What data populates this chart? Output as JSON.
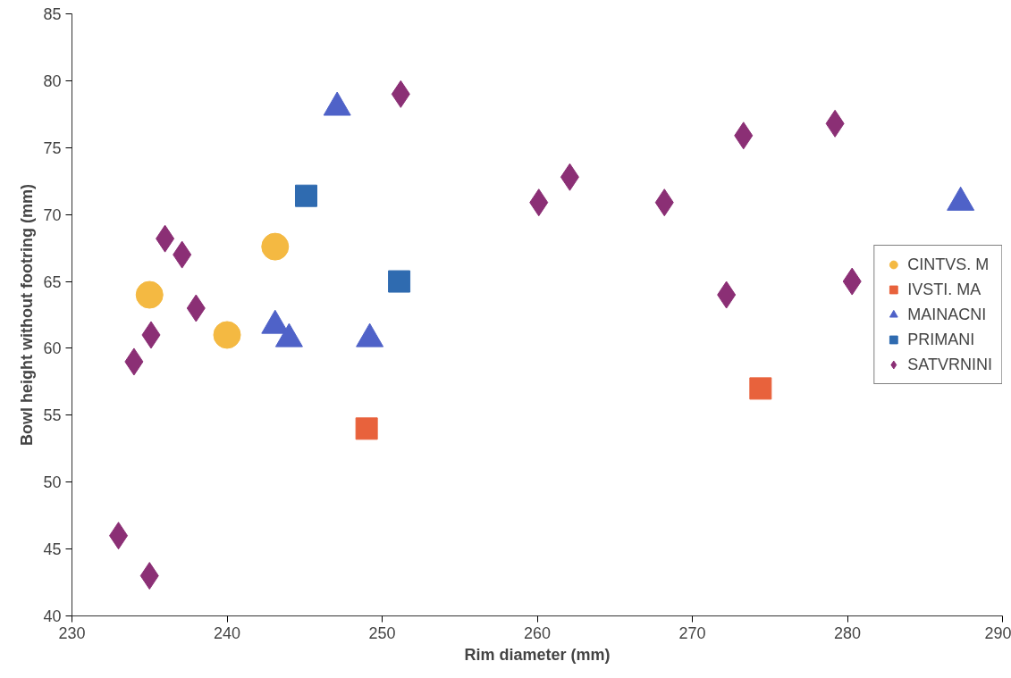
{
  "chart_data": {
    "type": "scatter",
    "xlabel": "Rim diameter (mm)",
    "ylabel": "Bowl height without footring (mm)",
    "xlim": [
      230,
      290
    ],
    "xticks": [
      230,
      240,
      250,
      260,
      270,
      280,
      290
    ],
    "ylim": [
      40,
      85
    ],
    "yticks": [
      40,
      45,
      50,
      55,
      60,
      65,
      70,
      75,
      80,
      85
    ],
    "grid": false,
    "legend": "right",
    "series": [
      {
        "name": "CINTVS. M",
        "color": "#f4b942",
        "marker": "circle",
        "x": [
          235,
          240,
          243.1
        ],
        "values": [
          64,
          61,
          67.6
        ]
      },
      {
        "name": "IVSTI. MA",
        "color": "#e8623c",
        "marker": "square",
        "x": [
          249,
          274.4
        ],
        "values": [
          54,
          57
        ]
      },
      {
        "name": "MAINACNI",
        "color": "#4f62c8",
        "marker": "triangle",
        "x": [
          247.1,
          243.1,
          244,
          249.2,
          287.3
        ],
        "values": [
          78,
          61.7,
          60.7,
          60.7,
          70.9
        ]
      },
      {
        "name": "PRIMANI",
        "color": "#2f6bb0",
        "marker": "square",
        "x": [
          245.1,
          251.1
        ],
        "values": [
          71.4,
          65
        ]
      },
      {
        "name": "SATVRNINI",
        "color": "#8b2f75",
        "marker": "diamond",
        "x": [
          251.2,
          236,
          237.1,
          238,
          235.1,
          234,
          233,
          235,
          260.1,
          262.1,
          268.2,
          273.3,
          279.2,
          272.2,
          280.3
        ],
        "values": [
          79,
          68.2,
          67,
          63,
          61,
          59,
          46,
          43,
          70.9,
          72.8,
          70.9,
          75.9,
          76.8,
          64,
          65
        ]
      }
    ]
  }
}
